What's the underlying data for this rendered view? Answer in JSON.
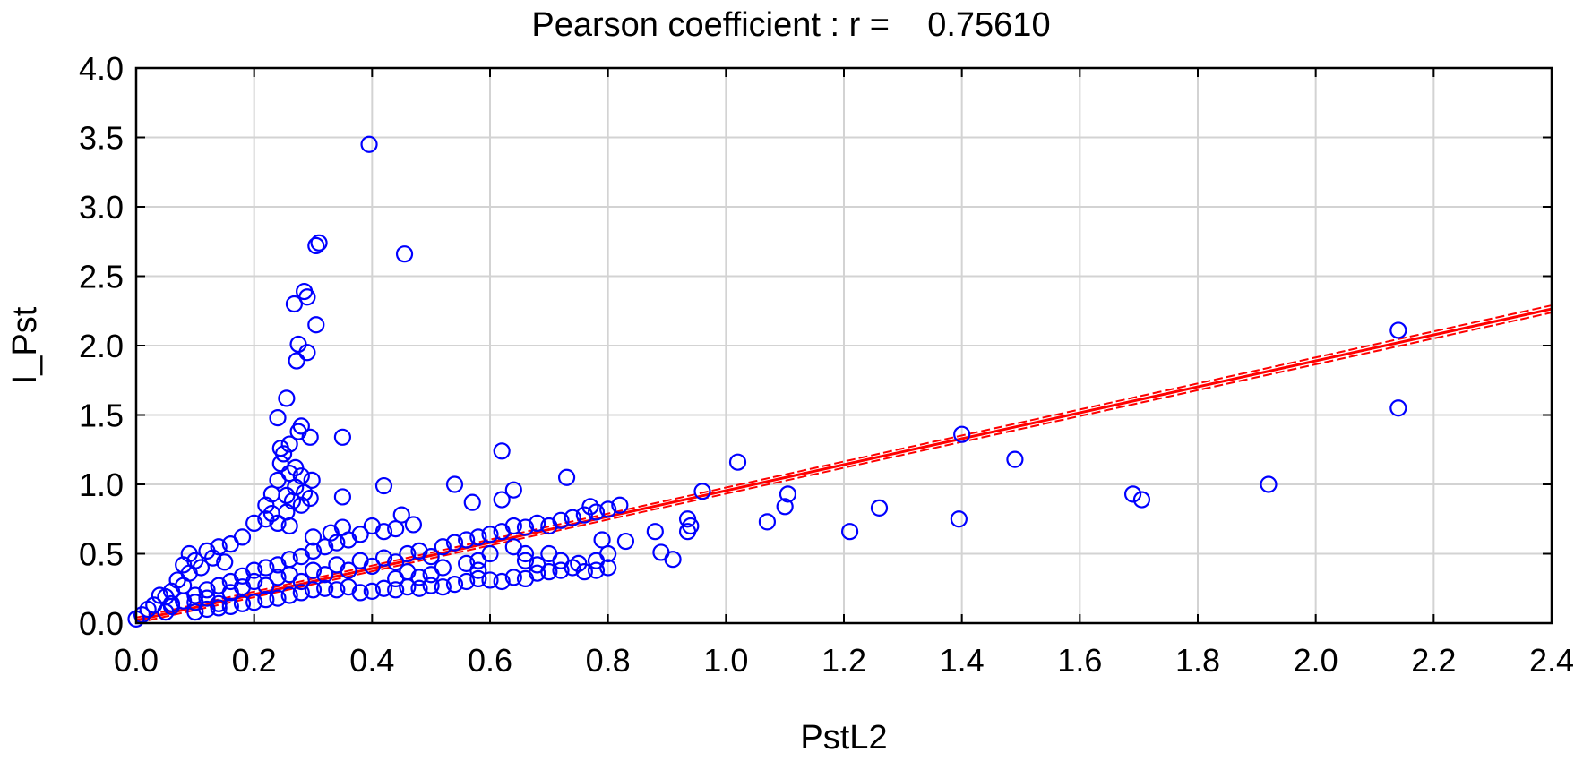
{
  "chart_data": {
    "type": "scatter",
    "title": "Pearson coefficient : r =    0.75610",
    "xlabel": "PstL2",
    "ylabel": "I_Pst",
    "xlim": [
      0.0,
      2.4
    ],
    "ylim": [
      0.0,
      4.0
    ],
    "x_ticks": [
      "0.0",
      "0.2",
      "0.4",
      "0.6",
      "0.8",
      "1.0",
      "1.2",
      "1.4",
      "1.6",
      "1.8",
      "2.0",
      "2.2",
      "2.4"
    ],
    "y_ticks": [
      "0.0",
      "0.5",
      "1.0",
      "1.5",
      "2.0",
      "2.5",
      "3.0",
      "3.5",
      "4.0"
    ],
    "grid": true,
    "colors": {
      "points": "#0000ff",
      "fit_line": "#ff0000",
      "grid": "#d3d3d3"
    },
    "fit_line": {
      "slope": 0.935,
      "intercept": 0.02,
      "x_range": [
        0.0,
        2.4
      ]
    },
    "series": [
      {
        "name": "observations",
        "points": [
          [
            0.395,
            3.45
          ],
          [
            0.455,
            2.66
          ],
          [
            0.31,
            2.74
          ],
          [
            0.305,
            2.72
          ],
          [
            0.285,
            2.39
          ],
          [
            0.29,
            2.35
          ],
          [
            0.268,
            2.3
          ],
          [
            0.305,
            2.15
          ],
          [
            0.275,
            2.01
          ],
          [
            0.29,
            1.95
          ],
          [
            0.272,
            1.89
          ],
          [
            0.255,
            1.62
          ],
          [
            0.24,
            1.48
          ],
          [
            0.28,
            1.42
          ],
          [
            0.275,
            1.38
          ],
          [
            0.295,
            1.34
          ],
          [
            0.35,
            1.34
          ],
          [
            0.245,
            1.26
          ],
          [
            0.26,
            1.29
          ],
          [
            0.25,
            1.22
          ],
          [
            0.245,
            1.15
          ],
          [
            0.27,
            1.12
          ],
          [
            0.26,
            1.08
          ],
          [
            0.28,
            1.06
          ],
          [
            0.298,
            1.03
          ],
          [
            0.24,
            1.03
          ],
          [
            0.27,
            0.98
          ],
          [
            0.285,
            0.94
          ],
          [
            0.295,
            0.9
          ],
          [
            0.255,
            0.92
          ],
          [
            0.265,
            0.88
          ],
          [
            0.28,
            0.85
          ],
          [
            0.23,
            0.93
          ],
          [
            0.22,
            0.85
          ],
          [
            0.23,
            0.79
          ],
          [
            0.255,
            0.8
          ],
          [
            0.24,
            0.72
          ],
          [
            0.26,
            0.7
          ],
          [
            0.3,
            0.62
          ],
          [
            0.35,
            0.91
          ],
          [
            0.42,
            0.99
          ],
          [
            0.22,
            0.75
          ],
          [
            0.2,
            0.72
          ],
          [
            0.18,
            0.62
          ],
          [
            0.16,
            0.57
          ],
          [
            0.14,
            0.55
          ],
          [
            0.12,
            0.52
          ],
          [
            0.09,
            0.5
          ],
          [
            0.1,
            0.45
          ],
          [
            0.08,
            0.42
          ],
          [
            0.13,
            0.47
          ],
          [
            0.15,
            0.44
          ],
          [
            0.11,
            0.4
          ],
          [
            0.09,
            0.36
          ],
          [
            0.07,
            0.31
          ],
          [
            0.08,
            0.27
          ],
          [
            0.06,
            0.23
          ],
          [
            0.05,
            0.19
          ],
          [
            0.04,
            0.2
          ],
          [
            0.03,
            0.13
          ],
          [
            0.02,
            0.1
          ],
          [
            0.01,
            0.06
          ],
          [
            0.0,
            0.03
          ],
          [
            0.05,
            0.08
          ],
          [
            0.06,
            0.12
          ],
          [
            0.1,
            0.15
          ],
          [
            0.12,
            0.18
          ],
          [
            0.14,
            0.14
          ],
          [
            0.16,
            0.22
          ],
          [
            0.18,
            0.26
          ],
          [
            0.2,
            0.3
          ],
          [
            0.22,
            0.27
          ],
          [
            0.24,
            0.33
          ],
          [
            0.26,
            0.35
          ],
          [
            0.28,
            0.3
          ],
          [
            0.3,
            0.38
          ],
          [
            0.32,
            0.35
          ],
          [
            0.34,
            0.42
          ],
          [
            0.36,
            0.38
          ],
          [
            0.38,
            0.45
          ],
          [
            0.4,
            0.41
          ],
          [
            0.42,
            0.47
          ],
          [
            0.44,
            0.44
          ],
          [
            0.46,
            0.5
          ],
          [
            0.48,
            0.52
          ],
          [
            0.5,
            0.48
          ],
          [
            0.52,
            0.55
          ],
          [
            0.54,
            0.58
          ],
          [
            0.56,
            0.6
          ],
          [
            0.58,
            0.62
          ],
          [
            0.6,
            0.64
          ],
          [
            0.62,
            0.66
          ],
          [
            0.64,
            0.7
          ],
          [
            0.66,
            0.69
          ],
          [
            0.68,
            0.72
          ],
          [
            0.7,
            0.7
          ],
          [
            0.72,
            0.74
          ],
          [
            0.74,
            0.76
          ],
          [
            0.76,
            0.78
          ],
          [
            0.78,
            0.8
          ],
          [
            0.8,
            0.82
          ],
          [
            0.82,
            0.85
          ],
          [
            0.77,
            0.84
          ],
          [
            0.73,
            1.05
          ],
          [
            0.62,
            1.24
          ],
          [
            0.64,
            0.96
          ],
          [
            0.62,
            0.89
          ],
          [
            0.57,
            0.87
          ],
          [
            0.54,
            1.0
          ],
          [
            0.45,
            0.78
          ],
          [
            0.47,
            0.71
          ],
          [
            0.44,
            0.68
          ],
          [
            0.42,
            0.66
          ],
          [
            0.4,
            0.7
          ],
          [
            0.38,
            0.64
          ],
          [
            0.36,
            0.6
          ],
          [
            0.34,
            0.58
          ],
          [
            0.32,
            0.55
          ],
          [
            0.33,
            0.65
          ],
          [
            0.35,
            0.69
          ],
          [
            0.3,
            0.52
          ],
          [
            0.28,
            0.48
          ],
          [
            0.26,
            0.46
          ],
          [
            0.24,
            0.42
          ],
          [
            0.22,
            0.4
          ],
          [
            0.2,
            0.38
          ],
          [
            0.18,
            0.34
          ],
          [
            0.16,
            0.3
          ],
          [
            0.14,
            0.27
          ],
          [
            0.12,
            0.24
          ],
          [
            0.1,
            0.2
          ],
          [
            0.08,
            0.16
          ],
          [
            0.06,
            0.14
          ],
          [
            0.1,
            0.08
          ],
          [
            0.12,
            0.1
          ],
          [
            0.14,
            0.11
          ],
          [
            0.16,
            0.12
          ],
          [
            0.18,
            0.14
          ],
          [
            0.2,
            0.15
          ],
          [
            0.22,
            0.17
          ],
          [
            0.24,
            0.18
          ],
          [
            0.26,
            0.2
          ],
          [
            0.28,
            0.22
          ],
          [
            0.3,
            0.24
          ],
          [
            0.32,
            0.25
          ],
          [
            0.34,
            0.24
          ],
          [
            0.36,
            0.26
          ],
          [
            0.38,
            0.22
          ],
          [
            0.4,
            0.23
          ],
          [
            0.42,
            0.25
          ],
          [
            0.44,
            0.24
          ],
          [
            0.46,
            0.26
          ],
          [
            0.48,
            0.25
          ],
          [
            0.5,
            0.27
          ],
          [
            0.52,
            0.26
          ],
          [
            0.54,
            0.28
          ],
          [
            0.56,
            0.3
          ],
          [
            0.58,
            0.32
          ],
          [
            0.6,
            0.31
          ],
          [
            0.62,
            0.3
          ],
          [
            0.64,
            0.33
          ],
          [
            0.66,
            0.32
          ],
          [
            0.68,
            0.36
          ],
          [
            0.7,
            0.37
          ],
          [
            0.72,
            0.38
          ],
          [
            0.74,
            0.4
          ],
          [
            0.76,
            0.37
          ],
          [
            0.78,
            0.38
          ],
          [
            0.8,
            0.4
          ],
          [
            0.66,
            0.45
          ],
          [
            0.68,
            0.42
          ],
          [
            0.7,
            0.5
          ],
          [
            0.72,
            0.45
          ],
          [
            0.75,
            0.43
          ],
          [
            0.78,
            0.45
          ],
          [
            0.8,
            0.5
          ],
          [
            0.79,
            0.6
          ],
          [
            0.83,
            0.59
          ],
          [
            0.56,
            0.43
          ],
          [
            0.58,
            0.38
          ],
          [
            0.5,
            0.35
          ],
          [
            0.52,
            0.4
          ],
          [
            0.48,
            0.33
          ],
          [
            0.46,
            0.37
          ],
          [
            0.44,
            0.32
          ],
          [
            0.64,
            0.55
          ],
          [
            0.66,
            0.5
          ],
          [
            0.58,
            0.45
          ],
          [
            0.6,
            0.5
          ],
          [
            0.88,
            0.66
          ],
          [
            0.89,
            0.51
          ],
          [
            0.91,
            0.46
          ],
          [
            0.935,
            0.66
          ],
          [
            0.94,
            0.7
          ],
          [
            0.935,
            0.75
          ],
          [
            0.96,
            0.95
          ],
          [
            1.02,
            1.16
          ],
          [
            1.07,
            0.73
          ],
          [
            1.1,
            0.84
          ],
          [
            1.105,
            0.93
          ],
          [
            1.21,
            0.66
          ],
          [
            1.26,
            0.83
          ],
          [
            1.395,
            0.75
          ],
          [
            1.4,
            1.36
          ],
          [
            1.49,
            1.18
          ],
          [
            1.69,
            0.93
          ],
          [
            1.705,
            0.89
          ],
          [
            1.92,
            1.0
          ],
          [
            2.14,
            2.11
          ],
          [
            2.14,
            1.55
          ]
        ]
      }
    ]
  }
}
